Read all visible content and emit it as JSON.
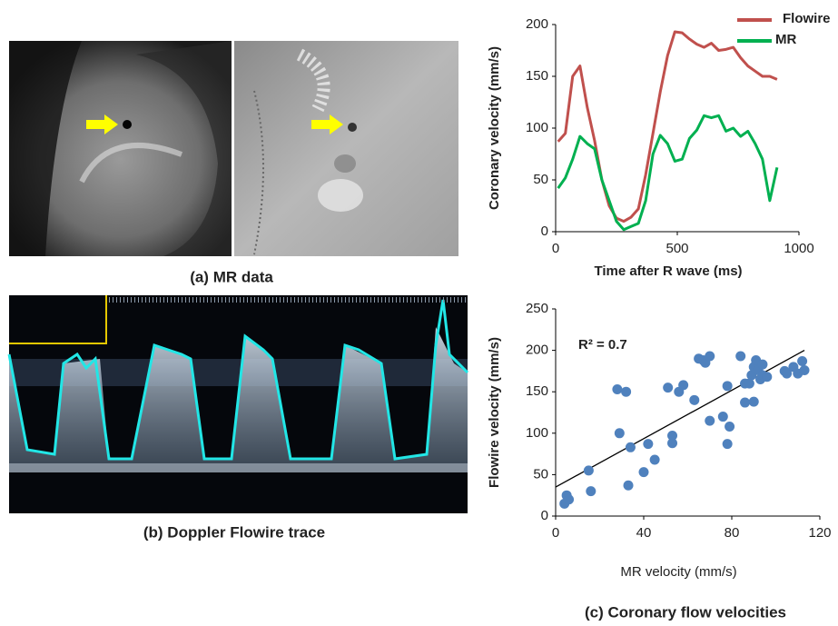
{
  "figure": {
    "captions": [
      "(a) MR data",
      "(b) Doppler Flowire trace",
      "(c) Coronary flow velocities"
    ]
  },
  "chart_data": [
    {
      "type": "line",
      "xlabel": "Time after R wave (ms)",
      "ylabel": "Coronary velocity (mm/s)",
      "x": [
        10,
        40,
        70,
        100,
        130,
        160,
        190,
        220,
        250,
        280,
        310,
        340,
        370,
        400,
        430,
        460,
        490,
        520,
        550,
        580,
        610,
        640,
        670,
        700,
        730,
        760,
        790,
        820,
        850,
        880,
        910
      ],
      "series": [
        {
          "name": "Flowire",
          "color": "#c0504d",
          "values": [
            87,
            95,
            150,
            160,
            120,
            88,
            50,
            25,
            13,
            10,
            14,
            22,
            55,
            95,
            135,
            170,
            193,
            192,
            186,
            181,
            178,
            182,
            175,
            176,
            178,
            168,
            160,
            155,
            150,
            150,
            147
          ]
        },
        {
          "name": "MR",
          "color": "#00b050",
          "values": [
            42,
            52,
            70,
            92,
            85,
            80,
            50,
            30,
            10,
            2,
            5,
            8,
            30,
            75,
            93,
            85,
            68,
            70,
            90,
            98,
            112,
            110,
            112,
            97,
            100,
            92,
            97,
            85,
            70,
            30,
            62
          ]
        }
      ],
      "xlim": [
        0,
        1000
      ],
      "xticks": [
        0,
        500,
        1000
      ],
      "ylim": [
        0,
        200
      ],
      "yticks": [
        0,
        50,
        100,
        150,
        200
      ],
      "grid": false,
      "legend": "upper right"
    },
    {
      "type": "scatter",
      "xlabel": "MR velocity (mm/s)",
      "ylabel": "Flowire velocity (mm/s)",
      "color": "#4f81bd",
      "x": [
        4,
        5,
        6,
        15,
        16,
        28,
        29,
        32,
        33,
        34,
        40,
        42,
        45,
        51,
        53,
        53,
        56,
        58,
        63,
        65,
        67,
        68,
        70,
        70,
        76,
        78,
        78,
        79,
        84,
        86,
        86,
        88,
        89,
        90,
        90,
        91,
        92,
        93,
        94,
        94,
        96,
        104,
        105,
        108,
        110,
        112,
        113
      ],
      "values": [
        15,
        25,
        20,
        55,
        30,
        153,
        100,
        150,
        37,
        83,
        53,
        87,
        68,
        155,
        88,
        97,
        150,
        158,
        140,
        190,
        188,
        185,
        193,
        115,
        120,
        87,
        157,
        108,
        193,
        160,
        137,
        160,
        170,
        180,
        138,
        188,
        176,
        165,
        170,
        183,
        168,
        175,
        172,
        180,
        172,
        187,
        176
      ],
      "trendline": {
        "x": [
          0,
          113
        ],
        "values": [
          35,
          200
        ]
      },
      "annotations": [
        "R² = 0.7"
      ],
      "xlim": [
        0,
        120
      ],
      "xticks": [
        0,
        40,
        80,
        120
      ],
      "ylim": [
        0,
        250
      ],
      "yticks": [
        0,
        50,
        100,
        150,
        200,
        250
      ],
      "grid": false
    }
  ]
}
